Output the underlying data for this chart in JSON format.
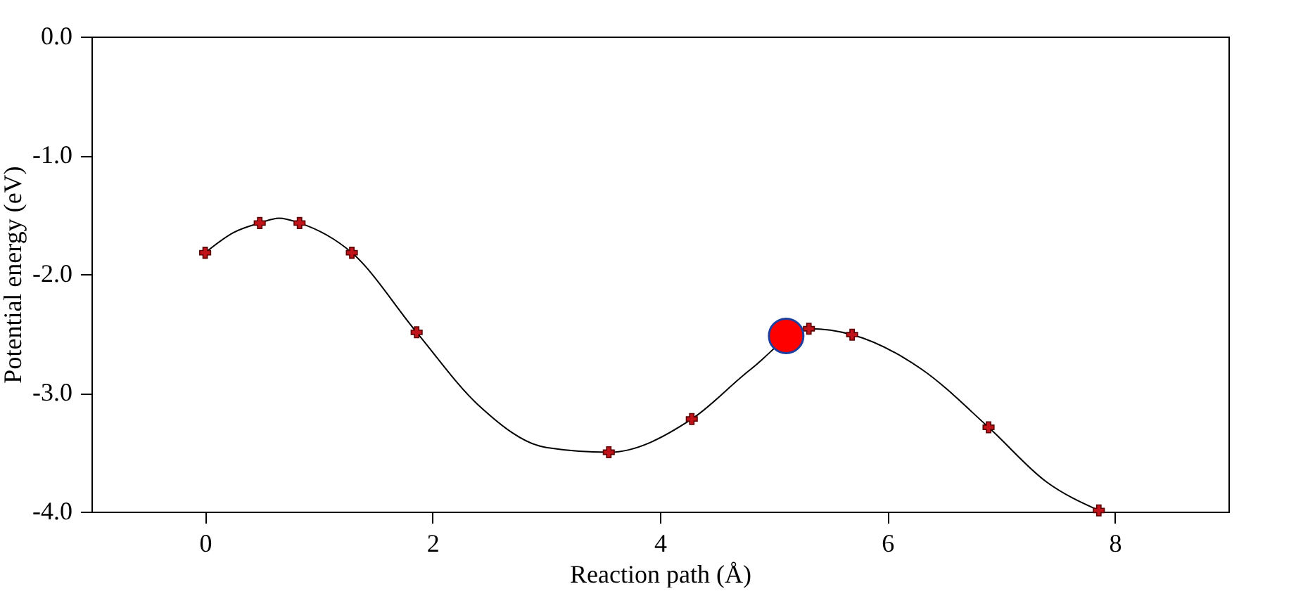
{
  "chart_data": {
    "type": "line",
    "xlabel": "Reaction path (Å)",
    "ylabel": "Potential energy (eV)",
    "xlim": [
      -1,
      9
    ],
    "xticks": [
      0,
      2,
      4,
      6,
      8
    ],
    "ylim": [
      -4,
      0
    ],
    "yticks": [
      {
        "value": 0,
        "label": "0.0"
      },
      {
        "value": -1,
        "label": "-1.0"
      },
      {
        "value": -2,
        "label": "-2.0"
      },
      {
        "value": -3,
        "label": "-3.0"
      },
      {
        "value": -4,
        "label": "-4.0"
      }
    ],
    "grid": false,
    "series": [
      {
        "color": "#000000",
        "marker": "none",
        "x": [
          0,
          0.25,
          0.48,
          0.65,
          0.83,
          1.29,
          1.86,
          2.4,
          3.0,
          3.55,
          4.28,
          4.8,
          5.31,
          5.69,
          6.3,
          6.89,
          7.4,
          7.86
        ],
        "values": [
          -1.82,
          -1.65,
          -1.57,
          -1.53,
          -1.57,
          -1.82,
          -2.49,
          -3.1,
          -3.46,
          -3.5,
          -3.22,
          -2.8,
          -2.46,
          -2.51,
          -2.8,
          -3.29,
          -3.75,
          -3.99
        ]
      },
      {
        "type": "scatter",
        "color": "#c0141a",
        "marker": "cross",
        "x": [
          0,
          0.48,
          0.83,
          1.29,
          1.86,
          3.55,
          4.28,
          5.31,
          5.69,
          6.89,
          7.86
        ],
        "values": [
          -1.82,
          -1.57,
          -1.57,
          -1.82,
          -2.49,
          -3.5,
          -3.22,
          -2.46,
          -2.51,
          -3.29,
          -3.99
        ]
      },
      {
        "type": "scatter",
        "color": "#ff0000",
        "marker": "circle",
        "x": [
          5.11
        ],
        "values": [
          -2.52
        ]
      }
    ]
  }
}
